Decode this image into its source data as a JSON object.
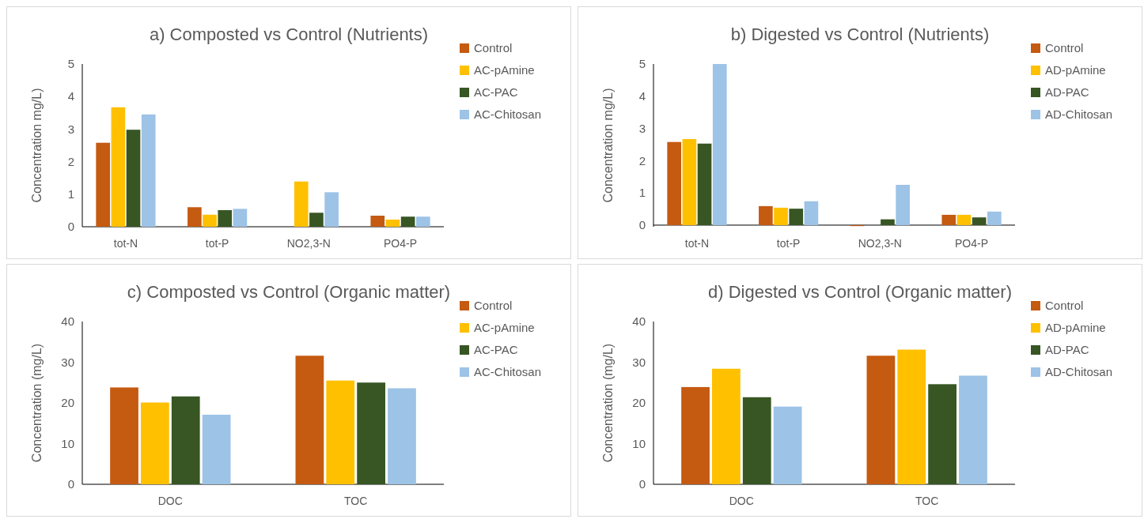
{
  "chart_data": [
    {
      "type": "bar",
      "title": "a) Composted vs Control (Nutrients)",
      "ylabel": "Concentration mg/L)",
      "categories": [
        "tot-N",
        "tot-P",
        "NO2,3-N",
        "PO4-P"
      ],
      "ylim": [
        0,
        5
      ],
      "yticks": [
        0,
        1,
        2,
        3,
        4,
        5
      ],
      "legend": "right",
      "series": [
        {
          "name": "Control",
          "color": "#c55a11",
          "values": [
            2.58,
            0.6,
            0,
            0.34
          ]
        },
        {
          "name": "AC-pAmine",
          "color": "#ffc000",
          "values": [
            3.67,
            0.37,
            1.39,
            0.22
          ]
        },
        {
          "name": "AC-PAC",
          "color": "#375623",
          "values": [
            2.98,
            0.51,
            0.43,
            0.31
          ]
        },
        {
          "name": "AC-Chitosan",
          "color": "#9dc3e6",
          "values": [
            3.45,
            0.55,
            1.06,
            0.31
          ]
        }
      ]
    },
    {
      "type": "bar",
      "title": "b) Digested vs Control (Nutrients)",
      "ylabel": "Concentration mg/L)",
      "categories": [
        "tot-N",
        "tot-P",
        "NO2,3-N",
        "PO4-P"
      ],
      "ylim": [
        -0.05,
        5
      ],
      "yticks": [
        0,
        1,
        2,
        3,
        4,
        5
      ],
      "legend": "right",
      "series": [
        {
          "name": "Control",
          "color": "#c55a11",
          "values": [
            2.58,
            0.59,
            -0.03,
            0.32
          ]
        },
        {
          "name": "AD-pAmine",
          "color": "#ffc000",
          "values": [
            2.67,
            0.54,
            0,
            0.32
          ]
        },
        {
          "name": "AD-PAC",
          "color": "#375623",
          "values": [
            2.53,
            0.51,
            0.18,
            0.24
          ]
        },
        {
          "name": "AD-Chitosan",
          "color": "#9dc3e6",
          "values": [
            5.0,
            0.74,
            1.25,
            0.42
          ]
        }
      ]
    },
    {
      "type": "bar",
      "title": "c) Composted vs Control (Organic matter)",
      "ylabel": "Concentration (mg/L)",
      "categories": [
        "DOC",
        "TOC"
      ],
      "ylim": [
        0,
        40
      ],
      "yticks": [
        0,
        10,
        20,
        30,
        40
      ],
      "legend": "right",
      "series": [
        {
          "name": "Control",
          "color": "#c55a11",
          "values": [
            23.8,
            31.6
          ]
        },
        {
          "name": "AC-pAmine",
          "color": "#ffc000",
          "values": [
            20.1,
            25.5
          ]
        },
        {
          "name": "AC-PAC",
          "color": "#375623",
          "values": [
            21.6,
            25.0
          ]
        },
        {
          "name": "AC-Chitosan",
          "color": "#9dc3e6",
          "values": [
            17.1,
            23.6
          ]
        }
      ]
    },
    {
      "type": "bar",
      "title": "d) Digested vs Control (Organic matter)",
      "ylabel": "Concentration (mg/L)",
      "categories": [
        "DOC",
        "TOC"
      ],
      "ylim": [
        0,
        40
      ],
      "yticks": [
        0,
        10,
        20,
        30,
        40
      ],
      "legend": "right",
      "series": [
        {
          "name": "Control",
          "color": "#c55a11",
          "values": [
            23.9,
            31.6
          ]
        },
        {
          "name": "AD-pAmine",
          "color": "#ffc000",
          "values": [
            28.4,
            33.1
          ]
        },
        {
          "name": "AD-PAC",
          "color": "#375623",
          "values": [
            21.4,
            24.6
          ]
        },
        {
          "name": "AD-Chitosan",
          "color": "#9dc3e6",
          "values": [
            19.1,
            26.7
          ]
        }
      ]
    }
  ]
}
